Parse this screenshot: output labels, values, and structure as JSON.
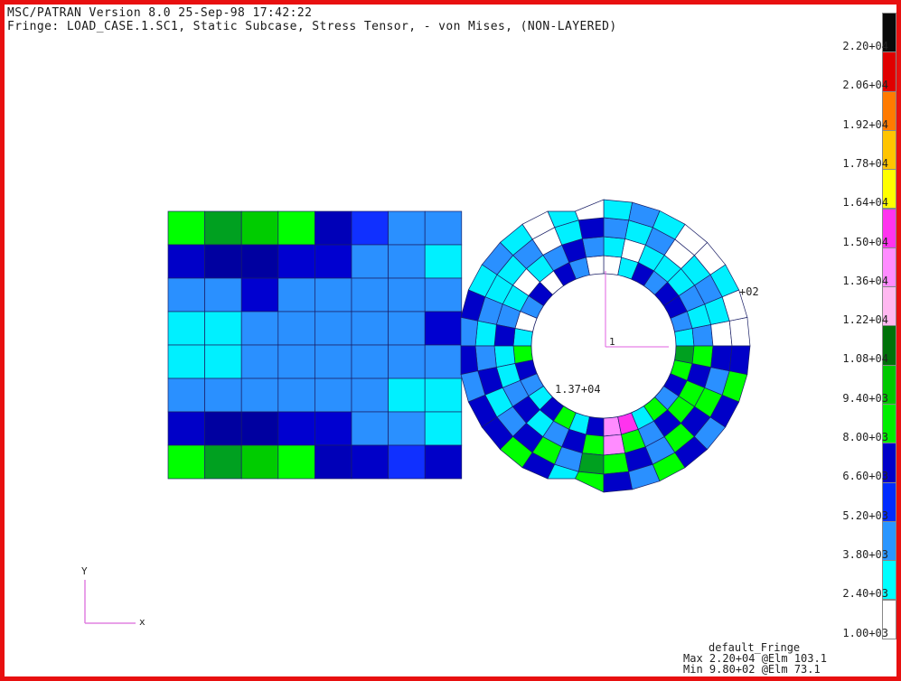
{
  "header": {
    "line1": "MSC/PATRAN Version 8.0 25-Sep-98 17:42:22",
    "line2": "Fringe: LOAD_CASE.1.SC1, Static Subcase, Stress Tensor, - von Mises, (NON-LAYERED)"
  },
  "colors": {
    "frame": "#e81010",
    "mesh_line": "#1a1f66"
  },
  "legend": {
    "labels": [
      "2.20+04",
      "2.06+04",
      "1.92+04",
      "1.78+04",
      "1.64+04",
      "1.50+04",
      "1.36+04",
      "1.22+04",
      "1.08+04",
      "9.40+03",
      "8.00+03",
      "6.60+03",
      "5.20+03",
      "3.80+03",
      "2.40+03",
      "1.00+03"
    ],
    "colors": [
      "#0a0a0a",
      "#e00000",
      "#ff7a00",
      "#ffc400",
      "#ffff00",
      "#ff33ee",
      "#ff8cff",
      "#ffb8f0",
      "#00720a",
      "#00c800",
      "#00ee00",
      "#0000c8",
      "#002bff",
      "#2a96ff",
      "#00ffff",
      "#ffffff"
    ]
  },
  "annotations": {
    "max_value": "1.37+04",
    "offset_label": "+02",
    "marker": "1"
  },
  "axis": {
    "y": "Y",
    "x": "x"
  },
  "footer": {
    "fringe": "default_Fringe",
    "max": "Max 2.20+04 @Elm 103.1",
    "min": "Min 9.80+02 @Elm 73.1"
  },
  "mesh": {
    "rect_grid": [
      [
        "#00ff00",
        "#00a020",
        "#00cc00",
        "#00ff00",
        "#0000b8",
        "#1030ff",
        "#2a90ff",
        "#2a90ff"
      ],
      [
        "#0000c8",
        "#0000a0",
        "#0000a0",
        "#0000d0",
        "#0000d0",
        "#2a90ff",
        "#2a90ff",
        "#00f0ff"
      ],
      [
        "#2a90ff",
        "#2a90ff",
        "#0000d0",
        "#2a90ff",
        "#2a90ff",
        "#2a90ff",
        "#2a90ff",
        "#2a90ff"
      ],
      [
        "#00f0ff",
        "#00f0ff",
        "#2a90ff",
        "#2a90ff",
        "#2a90ff",
        "#2a90ff",
        "#2a90ff",
        "#0000d0"
      ],
      [
        "#00f0ff",
        "#00f0ff",
        "#2a90ff",
        "#2a90ff",
        "#2a90ff",
        "#2a90ff",
        "#2a90ff",
        "#2a90ff"
      ],
      [
        "#2a90ff",
        "#2a90ff",
        "#2a90ff",
        "#2a90ff",
        "#2a90ff",
        "#2a90ff",
        "#00f0ff",
        "#00f0ff"
      ],
      [
        "#0000c8",
        "#0000a0",
        "#0000a0",
        "#0000d0",
        "#0000d0",
        "#2a90ff",
        "#2a90ff",
        "#00f0ff"
      ],
      [
        "#00ff00",
        "#00a020",
        "#00cc00",
        "#00ff00",
        "#0000b8",
        "#0000c8",
        "#1030ff",
        "#0000c8"
      ]
    ],
    "ring_colors": [
      [
        "#00f0ff",
        "#2a90ff",
        "#0000c8",
        "#0000c8",
        "#2a90ff",
        "#0000c8",
        "#00f0ff",
        "#ffffff",
        "#ffffff",
        "#2a90ff",
        "#0000c8",
        "#ffffff",
        "#0000c8",
        "#2a90ff",
        "#ffffff",
        "#00f0ff",
        "#00ff00",
        "#0000c8",
        "#2a90ff",
        "#00f0ff",
        "#0000c8",
        "#00ff00",
        "#00f0ff",
        "#0000c8",
        "#ff8cff",
        "#ff33ee",
        "#00f0ff",
        "#00ff00",
        "#2a90ff",
        "#0000c8",
        "#00ff00",
        "#00a020"
      ],
      [
        "#2a90ff",
        "#00f0ff",
        "#2a90ff",
        "#00f0ff",
        "#00f0ff",
        "#00f0ff",
        "#ffffff",
        "#00f0ff",
        "#2a90ff",
        "#0000c8",
        "#2a90ff",
        "#00f0ff",
        "#ffffff",
        "#00f0ff",
        "#2a90ff",
        "#0000c8",
        "#00f0ff",
        "#00f0ff",
        "#2a90ff",
        "#0000c8",
        "#00f0ff",
        "#2a90ff",
        "#0000c8",
        "#00ff00",
        "#ff8cff",
        "#00ff00",
        "#2a90ff",
        "#0000c8",
        "#00ff00",
        "#00ff00",
        "#0000c8",
        "#00ff00"
      ],
      [
        "#ffffff",
        "#00f0ff",
        "#2a90ff",
        "#00f0ff",
        "#ffffff",
        "#2a90ff",
        "#00f0ff",
        "#2a90ff",
        "#0000c8",
        "#00f0ff",
        "#ffffff",
        "#2a90ff",
        "#00f0ff",
        "#00f0ff",
        "#2a90ff",
        "#00f0ff",
        "#2a90ff",
        "#0000c8",
        "#00f0ff",
        "#2a90ff",
        "#0000c8",
        "#00ff00",
        "#2a90ff",
        "#00a020",
        "#00ff00",
        "#0000c8",
        "#2a90ff",
        "#00ff00",
        "#0000c8",
        "#00ff00",
        "#2a90ff",
        "#0000c8"
      ],
      [
        "#ffffff",
        "#ffffff",
        "#00f0ff",
        "#ffffff",
        "#ffffff",
        "#00f0ff",
        "#2a90ff",
        "#00f0ff",
        "#ffffff",
        "#00f0ff",
        "#ffffff",
        "#00f0ff",
        "#2a90ff",
        "#00f0ff",
        "#0000c8",
        "#2a90ff",
        "#0000c8",
        "#2a90ff",
        "#0000c8",
        "#0000c8",
        "#00ff00",
        "#0000c8",
        "#00f0ff",
        "#00ff00",
        "#0000c8",
        "#2a90ff",
        "#00ff00",
        "#0000c8",
        "#2a90ff",
        "#0000c8",
        "#00ff00",
        "#0000c8"
      ]
    ]
  }
}
